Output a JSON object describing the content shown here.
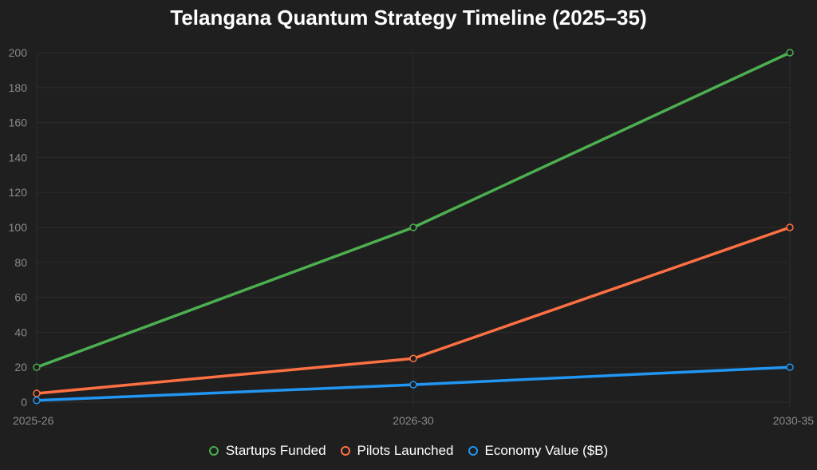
{
  "chart_data": {
    "type": "line",
    "title": "Telangana Quantum Strategy Timeline (2025–35)",
    "xlabel": "",
    "ylabel": "",
    "categories": [
      "2025-26",
      "2026-30",
      "2030-35"
    ],
    "ylim": [
      0,
      200
    ],
    "yticks": [
      0,
      20,
      40,
      60,
      80,
      100,
      120,
      140,
      160,
      180,
      200
    ],
    "grid": true,
    "legend": "bottom-center",
    "series": [
      {
        "name": "Startups Funded",
        "values": [
          20,
          100,
          200
        ],
        "color": "#4caf50"
      },
      {
        "name": "Pilots Launched",
        "values": [
          5,
          25,
          100
        ],
        "color": "#ff7043"
      },
      {
        "name": "Economy Value ($B)",
        "values": [
          1,
          10,
          20
        ],
        "color": "#2196f3"
      }
    ]
  }
}
